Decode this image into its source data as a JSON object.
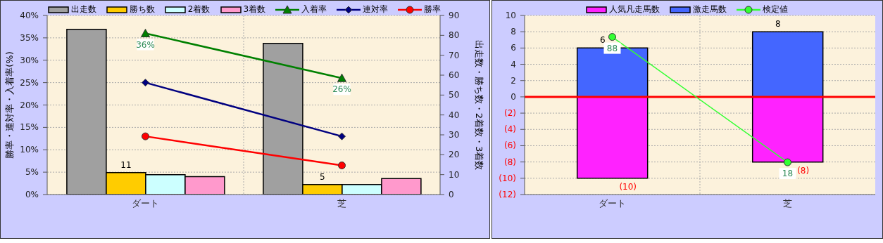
{
  "chart_data": [
    {
      "type": "bar",
      "categories": [
        "ダート",
        "芝"
      ],
      "ylabel": "勝率・連対率・入着率(%)",
      "y2label": "出走数・勝ち数・2着数・3着数",
      "ylim": [
        0,
        40
      ],
      "yticks": [
        {
          "value": 0,
          "label": "0%"
        },
        {
          "value": 5,
          "label": "5%"
        },
        {
          "value": 10,
          "label": "10%"
        },
        {
          "value": 15,
          "label": "15%"
        },
        {
          "value": 20,
          "label": "20%"
        },
        {
          "value": 25,
          "label": "25%"
        },
        {
          "value": 30,
          "label": "30%"
        },
        {
          "value": 35,
          "label": "35%"
        },
        {
          "value": 40,
          "label": "40%"
        }
      ],
      "y2lim": [
        0,
        90
      ],
      "y2ticks": [
        0,
        10,
        20,
        30,
        40,
        50,
        60,
        70,
        80,
        90
      ],
      "grid": true,
      "legend": "top",
      "series": [
        {
          "name": "出走数",
          "color": "#a0a0a0",
          "axis": "y2",
          "values": [
            83,
            76
          ]
        },
        {
          "name": "勝ち数",
          "color": "#ffcc00",
          "axis": "y2",
          "values": [
            11,
            5
          ],
          "value_labels": [
            "11",
            "5"
          ]
        },
        {
          "name": "2着数",
          "color": "#ccffff",
          "axis": "y2",
          "values": [
            10,
            5
          ]
        },
        {
          "name": "3着数",
          "color": "#ff99cc",
          "axis": "y2",
          "values": [
            9,
            8
          ]
        },
        {
          "name": "入着率",
          "type": "line",
          "color": "#008000",
          "marker": "triangle",
          "values": [
            36,
            26
          ],
          "value_labels": [
            "36%",
            "26%"
          ]
        },
        {
          "name": "連対率",
          "type": "line",
          "color": "#000080",
          "marker": "diamond",
          "values": [
            25,
            13
          ]
        },
        {
          "name": "勝率",
          "type": "line",
          "color": "#ff0000",
          "marker": "circle",
          "values": [
            13,
            6.5
          ]
        }
      ]
    },
    {
      "type": "bar",
      "stacked": true,
      "categories": [
        "ダート",
        "芝"
      ],
      "ylim": [
        -12,
        10
      ],
      "yticks": [
        {
          "value": -12,
          "label": "(12)"
        },
        {
          "value": -10,
          "label": "(10)"
        },
        {
          "value": -8,
          "label": "(8)"
        },
        {
          "value": -6,
          "label": "(6)"
        },
        {
          "value": -4,
          "label": "(4)"
        },
        {
          "value": -2,
          "label": "(2)"
        },
        0,
        2,
        4,
        6,
        8,
        10
      ],
      "y2lim": [
        0,
        100
      ],
      "grid": true,
      "legend": "top",
      "ref_lines": [
        {
          "axis": "y",
          "value": 0,
          "color": "#ff0000"
        }
      ],
      "series": [
        {
          "name": "人気凡走馬数",
          "color": "#ff22ff",
          "values": [
            -10,
            -8
          ],
          "value_labels": [
            "(10)",
            "(8)"
          ]
        },
        {
          "name": "激走馬数",
          "color": "#4466ff",
          "values": [
            6,
            8
          ],
          "value_labels": [
            "6",
            "8"
          ]
        },
        {
          "name": "検定値",
          "type": "line",
          "axis": "y2",
          "color": "#33ff33",
          "marker": "circle",
          "values": [
            88,
            18
          ],
          "value_labels": [
            "88",
            "18"
          ]
        }
      ]
    }
  ]
}
